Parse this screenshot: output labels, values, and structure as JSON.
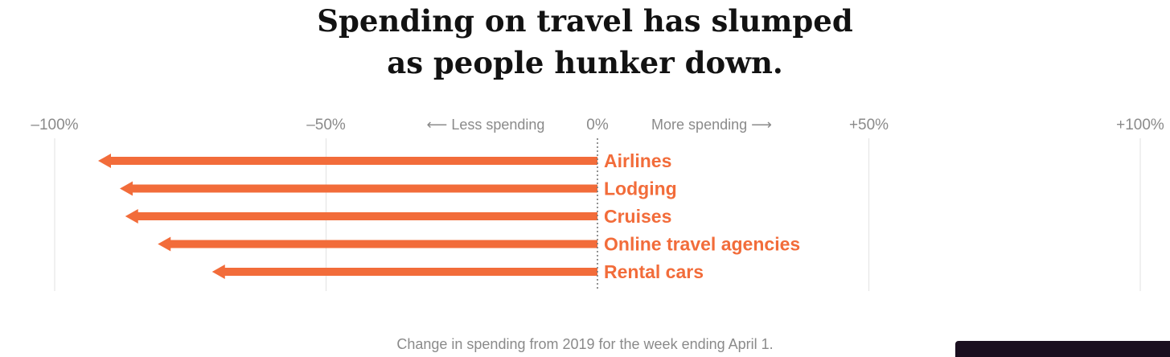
{
  "title_lines": [
    "Spending on travel has slumped",
    "as people hunker down."
  ],
  "caption": "Change in spending from 2019 for the week ending April 1.",
  "colors": {
    "bar": "#f26c3a",
    "grid": "#e6e6e6",
    "zero_line": "#777777",
    "text_muted": "#8a8a8a"
  },
  "chart_data": {
    "type": "bar",
    "orientation": "horizontal",
    "marker": "arrow",
    "xlim": [
      -100,
      100
    ],
    "x_ticks": [
      {
        "value": -100,
        "label": "–100%"
      },
      {
        "value": -50,
        "label": "–50%"
      },
      {
        "value": 0,
        "label": "0%"
      },
      {
        "value": 50,
        "label": "+50%"
      },
      {
        "value": 100,
        "label": "+100%"
      }
    ],
    "direction_labels": {
      "negative": "⟵ Less spending",
      "positive": "More spending ⟶"
    },
    "categories": [
      "Airlines",
      "Lodging",
      "Cruises",
      "Online travel agencies",
      "Rental cars"
    ],
    "values": [
      -92,
      -88,
      -87,
      -81,
      -71
    ],
    "grid": true
  }
}
